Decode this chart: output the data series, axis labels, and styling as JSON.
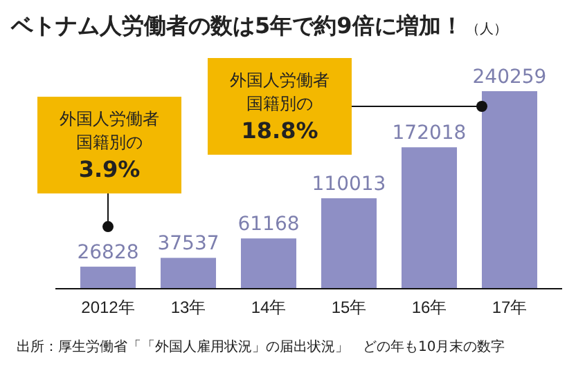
{
  "chart_data": {
    "type": "bar",
    "title": "ベトナム人労働者の数は5年で約9倍に増加！",
    "ylabel": "（人）",
    "categories": [
      "2012年",
      "13年",
      "14年",
      "15年",
      "16年",
      "17年"
    ],
    "values": [
      26828,
      37537,
      61168,
      110013,
      172018,
      240259
    ],
    "color": "#8e8fc5",
    "data_labels": true,
    "annotations": [
      "外国人労働者国籍別の",
      "3.9%",
      "外国人労働者国籍別の",
      "18.8%",
      "出所：厚生労働省「「外国人雇用状況」の届出状況」　どの年も10月末の数字"
    ]
  }
}
